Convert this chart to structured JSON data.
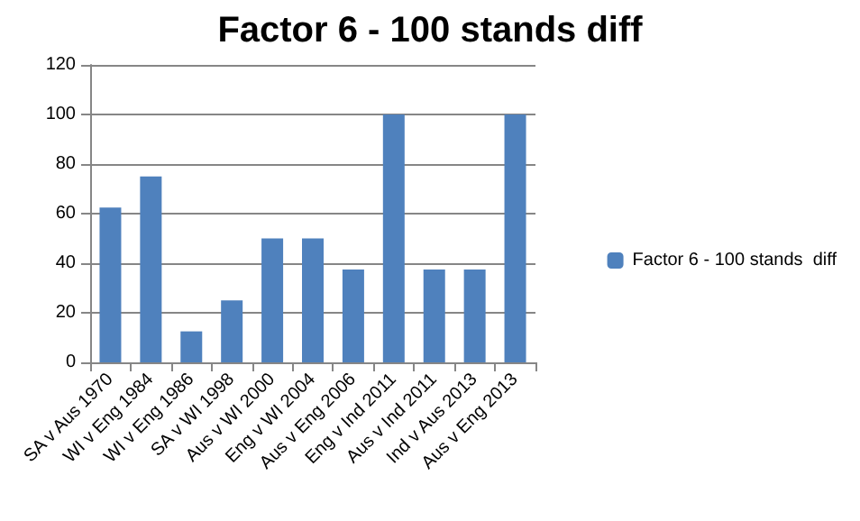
{
  "chart_data": {
    "type": "bar",
    "title": "Factor 6 - 100 stands diff",
    "categories": [
      "SA v Aus 1970",
      "WI v Eng 1984",
      "WI v Eng 1986",
      "SA v WI 1998",
      "Aus v WI 2000",
      "Eng v WI 2004",
      "Aus v Eng 2006",
      "Eng v Ind 2011",
      "Aus v Ind 2011",
      "Ind v Aus 2013",
      "Aus v Eng 2013"
    ],
    "series": [
      {
        "name": "Factor 6 - 100 stands  diff",
        "color": "#4f81bd",
        "values": [
          62.5,
          75,
          12.5,
          25,
          50,
          50,
          37.5,
          100,
          37.5,
          37.5,
          100
        ]
      }
    ],
    "ylim": [
      0,
      120
    ],
    "yticks": [
      0,
      20,
      40,
      60,
      80,
      100,
      120
    ],
    "grid": "y",
    "legend": "right"
  }
}
